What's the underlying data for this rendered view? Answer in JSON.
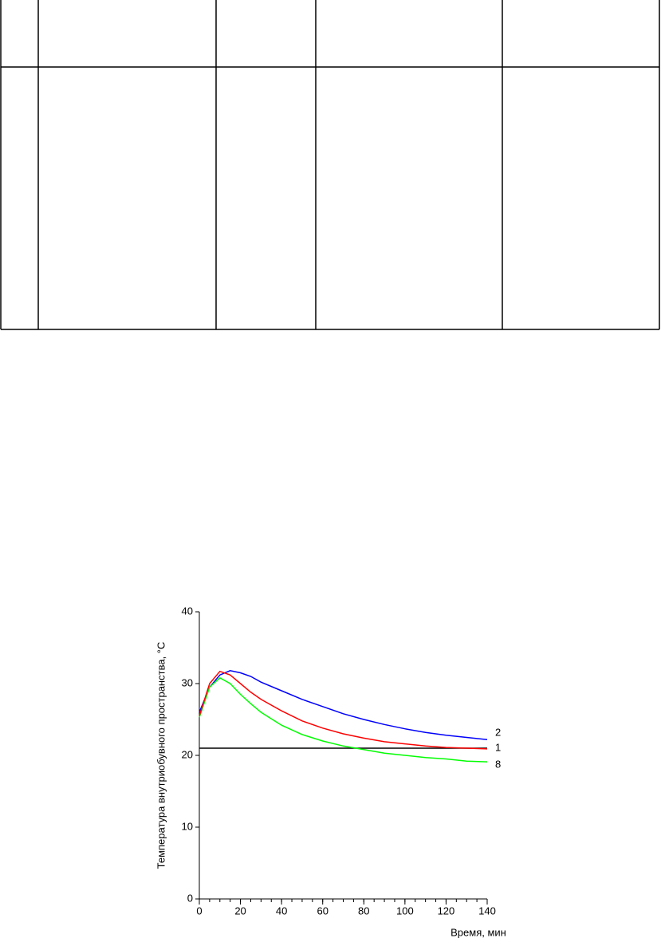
{
  "chart_data": {
    "type": "line",
    "x_label": "Время, мин",
    "y_label": "Температура внутриобувного пространства, °C",
    "x": [
      0,
      5,
      10,
      15,
      20,
      25,
      30,
      40,
      50,
      60,
      70,
      80,
      90,
      100,
      110,
      120,
      130,
      140
    ],
    "series": [
      {
        "name": "2",
        "color": "#0000ff",
        "values": [
          26,
          29.5,
          31.2,
          31.8,
          31.5,
          31,
          30.2,
          29,
          27.8,
          26.8,
          25.8,
          25,
          24.3,
          23.7,
          23.2,
          22.8,
          22.5,
          22.2
        ]
      },
      {
        "name": "1",
        "color": "#000000",
        "values": [
          21,
          21,
          21,
          21,
          21,
          21,
          21,
          21,
          21,
          21,
          21,
          21,
          21,
          21,
          21,
          21,
          21,
          21
        ]
      },
      {
        "name": "8",
        "color": "#00ff00",
        "values": [
          25.3,
          29.5,
          30.8,
          30,
          28.5,
          27.2,
          26,
          24.2,
          22.9,
          22,
          21.3,
          20.8,
          20.3,
          20,
          19.7,
          19.5,
          19.2,
          19.1
        ]
      },
      {
        "color": "#ff0000",
        "values": [
          25.5,
          30,
          31.7,
          31.2,
          30,
          28.8,
          27.8,
          26.2,
          24.8,
          23.8,
          23,
          22.4,
          21.9,
          21.6,
          21.3,
          21.1,
          21.0,
          20.9
        ]
      }
    ],
    "xlim": [
      0,
      140
    ],
    "xticks": [
      0,
      20,
      40,
      60,
      80,
      100,
      120,
      140
    ],
    "ylim": [
      0,
      40
    ],
    "yticks": [
      0,
      10,
      20,
      30,
      40
    ]
  }
}
